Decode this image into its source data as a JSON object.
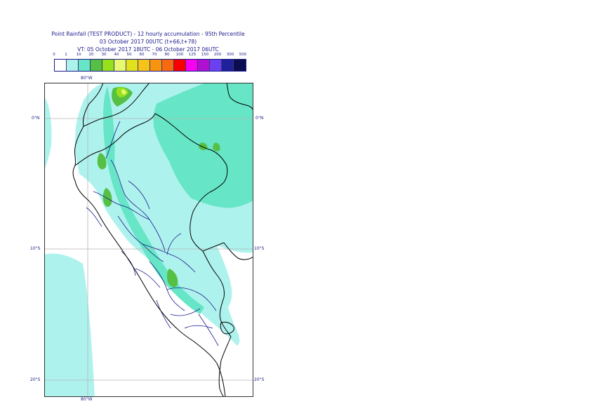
{
  "title": {
    "line1": "Point Rainfall (TEST PRODUCT) - 12 hourly accumulation - 95th Percentile",
    "line2": "03 October 2017 00UTC (t+66,t+78)",
    "line3": "VT: 05 October 2017 18UTC - 06 October 2017 06UTC"
  },
  "legend": {
    "thresholds": [
      "0",
      "1",
      "10",
      "20",
      "30",
      "40",
      "50",
      "60",
      "70",
      "80",
      "100",
      "125",
      "150",
      "200",
      "300",
      "500"
    ],
    "colors": [
      "#ffffff",
      "#aef2ee",
      "#66e6c6",
      "#55c044",
      "#96e01c",
      "#e8f870",
      "#e2e21c",
      "#f6c418",
      "#f89410",
      "#f86a10",
      "#f80000",
      "#f800f0",
      "#b010d0",
      "#6a40f0",
      "#20209a",
      "#0c0c50"
    ]
  },
  "axes": {
    "lon_top": "80°W",
    "lon_bottom": "80°W",
    "lat_left": [
      "0°N",
      "10°S",
      "20°S"
    ],
    "lat_right": [
      "0°N",
      "10°S",
      "20°S"
    ]
  },
  "map": {
    "ocean_color": "#ffffff",
    "light_rain_color": "#aef2ee",
    "moderate_rain_color": "#66e6c6",
    "heavy_rain_color": "#55c044",
    "very_heavy_rain_color": "#96e01c",
    "extreme_rain_color": "#e8f870",
    "coast_color": "#000000",
    "border_color": "#1a1a8c",
    "grid_color": "#b4b4b4"
  }
}
